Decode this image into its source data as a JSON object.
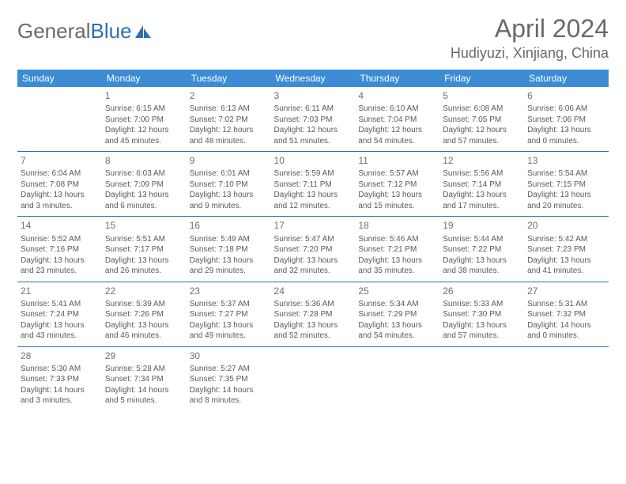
{
  "logo": {
    "text_gray": "General",
    "text_blue": "Blue"
  },
  "title": "April 2024",
  "location": "Hudiyuzi, Xinjiang, China",
  "colors": {
    "header_bg": "#3b8cd4",
    "header_text": "#ffffff",
    "border": "#2c6fb3",
    "text": "#5a5a5a",
    "title_text": "#6a6a6a"
  },
  "day_names": [
    "Sunday",
    "Monday",
    "Tuesday",
    "Wednesday",
    "Thursday",
    "Friday",
    "Saturday"
  ],
  "weeks": [
    [
      null,
      {
        "n": "1",
        "sr": "Sunrise: 6:15 AM",
        "ss": "Sunset: 7:00 PM",
        "dl": "Daylight: 12 hours and 45 minutes."
      },
      {
        "n": "2",
        "sr": "Sunrise: 6:13 AM",
        "ss": "Sunset: 7:02 PM",
        "dl": "Daylight: 12 hours and 48 minutes."
      },
      {
        "n": "3",
        "sr": "Sunrise: 6:11 AM",
        "ss": "Sunset: 7:03 PM",
        "dl": "Daylight: 12 hours and 51 minutes."
      },
      {
        "n": "4",
        "sr": "Sunrise: 6:10 AM",
        "ss": "Sunset: 7:04 PM",
        "dl": "Daylight: 12 hours and 54 minutes."
      },
      {
        "n": "5",
        "sr": "Sunrise: 6:08 AM",
        "ss": "Sunset: 7:05 PM",
        "dl": "Daylight: 12 hours and 57 minutes."
      },
      {
        "n": "6",
        "sr": "Sunrise: 6:06 AM",
        "ss": "Sunset: 7:06 PM",
        "dl": "Daylight: 13 hours and 0 minutes."
      }
    ],
    [
      {
        "n": "7",
        "sr": "Sunrise: 6:04 AM",
        "ss": "Sunset: 7:08 PM",
        "dl": "Daylight: 13 hours and 3 minutes."
      },
      {
        "n": "8",
        "sr": "Sunrise: 6:03 AM",
        "ss": "Sunset: 7:09 PM",
        "dl": "Daylight: 13 hours and 6 minutes."
      },
      {
        "n": "9",
        "sr": "Sunrise: 6:01 AM",
        "ss": "Sunset: 7:10 PM",
        "dl": "Daylight: 13 hours and 9 minutes."
      },
      {
        "n": "10",
        "sr": "Sunrise: 5:59 AM",
        "ss": "Sunset: 7:11 PM",
        "dl": "Daylight: 13 hours and 12 minutes."
      },
      {
        "n": "11",
        "sr": "Sunrise: 5:57 AM",
        "ss": "Sunset: 7:12 PM",
        "dl": "Daylight: 13 hours and 15 minutes."
      },
      {
        "n": "12",
        "sr": "Sunrise: 5:56 AM",
        "ss": "Sunset: 7:14 PM",
        "dl": "Daylight: 13 hours and 17 minutes."
      },
      {
        "n": "13",
        "sr": "Sunrise: 5:54 AM",
        "ss": "Sunset: 7:15 PM",
        "dl": "Daylight: 13 hours and 20 minutes."
      }
    ],
    [
      {
        "n": "14",
        "sr": "Sunrise: 5:52 AM",
        "ss": "Sunset: 7:16 PM",
        "dl": "Daylight: 13 hours and 23 minutes."
      },
      {
        "n": "15",
        "sr": "Sunrise: 5:51 AM",
        "ss": "Sunset: 7:17 PM",
        "dl": "Daylight: 13 hours and 26 minutes."
      },
      {
        "n": "16",
        "sr": "Sunrise: 5:49 AM",
        "ss": "Sunset: 7:18 PM",
        "dl": "Daylight: 13 hours and 29 minutes."
      },
      {
        "n": "17",
        "sr": "Sunrise: 5:47 AM",
        "ss": "Sunset: 7:20 PM",
        "dl": "Daylight: 13 hours and 32 minutes."
      },
      {
        "n": "18",
        "sr": "Sunrise: 5:46 AM",
        "ss": "Sunset: 7:21 PM",
        "dl": "Daylight: 13 hours and 35 minutes."
      },
      {
        "n": "19",
        "sr": "Sunrise: 5:44 AM",
        "ss": "Sunset: 7:22 PM",
        "dl": "Daylight: 13 hours and 38 minutes."
      },
      {
        "n": "20",
        "sr": "Sunrise: 5:42 AM",
        "ss": "Sunset: 7:23 PM",
        "dl": "Daylight: 13 hours and 41 minutes."
      }
    ],
    [
      {
        "n": "21",
        "sr": "Sunrise: 5:41 AM",
        "ss": "Sunset: 7:24 PM",
        "dl": "Daylight: 13 hours and 43 minutes."
      },
      {
        "n": "22",
        "sr": "Sunrise: 5:39 AM",
        "ss": "Sunset: 7:26 PM",
        "dl": "Daylight: 13 hours and 46 minutes."
      },
      {
        "n": "23",
        "sr": "Sunrise: 5:37 AM",
        "ss": "Sunset: 7:27 PM",
        "dl": "Daylight: 13 hours and 49 minutes."
      },
      {
        "n": "24",
        "sr": "Sunrise: 5:36 AM",
        "ss": "Sunset: 7:28 PM",
        "dl": "Daylight: 13 hours and 52 minutes."
      },
      {
        "n": "25",
        "sr": "Sunrise: 5:34 AM",
        "ss": "Sunset: 7:29 PM",
        "dl": "Daylight: 13 hours and 54 minutes."
      },
      {
        "n": "26",
        "sr": "Sunrise: 5:33 AM",
        "ss": "Sunset: 7:30 PM",
        "dl": "Daylight: 13 hours and 57 minutes."
      },
      {
        "n": "27",
        "sr": "Sunrise: 5:31 AM",
        "ss": "Sunset: 7:32 PM",
        "dl": "Daylight: 14 hours and 0 minutes."
      }
    ],
    [
      {
        "n": "28",
        "sr": "Sunrise: 5:30 AM",
        "ss": "Sunset: 7:33 PM",
        "dl": "Daylight: 14 hours and 3 minutes."
      },
      {
        "n": "29",
        "sr": "Sunrise: 5:28 AM",
        "ss": "Sunset: 7:34 PM",
        "dl": "Daylight: 14 hours and 5 minutes."
      },
      {
        "n": "30",
        "sr": "Sunrise: 5:27 AM",
        "ss": "Sunset: 7:35 PM",
        "dl": "Daylight: 14 hours and 8 minutes."
      },
      null,
      null,
      null,
      null
    ]
  ]
}
